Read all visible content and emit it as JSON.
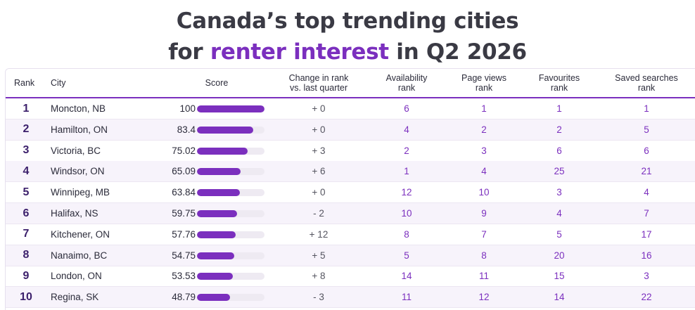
{
  "title": {
    "line1": "Canada’s top trending cities",
    "line2_prefix": "for ",
    "line2_highlight": "renter interest",
    "line2_suffix": " in Q2 2026"
  },
  "colors": {
    "accent": "#7b2fbe",
    "bar_track": "#eeeaf2",
    "row_alt": "#f7f3fb"
  },
  "chart_data": {
    "type": "table",
    "title": "Canada’s top trending cities for renter interest in Q2 2026",
    "score_range": [
      0,
      100
    ],
    "columns": {
      "rank": "Rank",
      "city": "City",
      "score": "Score",
      "change_1": "Change in rank",
      "change_2": "vs. last quarter",
      "availability_1": "Availability",
      "availability_2": "rank",
      "pageviews_1": "Page views",
      "pageviews_2": "rank",
      "favourites_1": "Favourites",
      "favourites_2": "rank",
      "saved_1": "Saved searches",
      "saved_2": "rank"
    },
    "rows": [
      {
        "rank": "1",
        "city": "Moncton, NB",
        "score": "100",
        "change": "+ 0",
        "availability": "6",
        "pageviews": "1",
        "favourites": "1",
        "saved": "1"
      },
      {
        "rank": "2",
        "city": "Hamilton, ON",
        "score": "83.4",
        "change": "+ 0",
        "availability": "4",
        "pageviews": "2",
        "favourites": "2",
        "saved": "5"
      },
      {
        "rank": "3",
        "city": "Victoria, BC",
        "score": "75.02",
        "change": "+ 3",
        "availability": "2",
        "pageviews": "3",
        "favourites": "6",
        "saved": "6"
      },
      {
        "rank": "4",
        "city": "Windsor, ON",
        "score": "65.09",
        "change": "+ 6",
        "availability": "1",
        "pageviews": "4",
        "favourites": "25",
        "saved": "21"
      },
      {
        "rank": "5",
        "city": "Winnipeg, MB",
        "score": "63.84",
        "change": "+ 0",
        "availability": "12",
        "pageviews": "10",
        "favourites": "3",
        "saved": "4"
      },
      {
        "rank": "6",
        "city": "Halifax, NS",
        "score": "59.75",
        "change": "- 2",
        "availability": "10",
        "pageviews": "9",
        "favourites": "4",
        "saved": "7"
      },
      {
        "rank": "7",
        "city": "Kitchener, ON",
        "score": "57.76",
        "change": "+ 12",
        "availability": "8",
        "pageviews": "7",
        "favourites": "5",
        "saved": "17"
      },
      {
        "rank": "8",
        "city": "Nanaimo, BC",
        "score": "54.75",
        "change": "+ 5",
        "availability": "5",
        "pageviews": "8",
        "favourites": "20",
        "saved": "16"
      },
      {
        "rank": "9",
        "city": "London, ON",
        "score": "53.53",
        "change": "+ 8",
        "availability": "14",
        "pageviews": "11",
        "favourites": "15",
        "saved": "3"
      },
      {
        "rank": "10",
        "city": "Regina, SK",
        "score": "48.79",
        "change": "- 3",
        "availability": "11",
        "pageviews": "12",
        "favourites": "14",
        "saved": "22"
      }
    ]
  }
}
